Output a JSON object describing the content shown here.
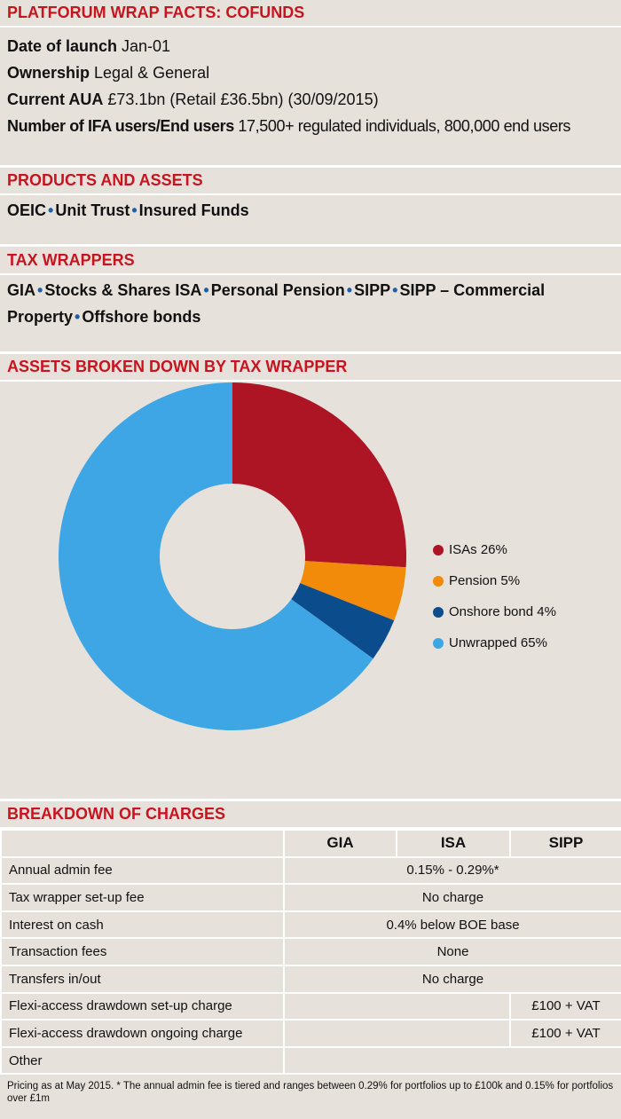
{
  "header": {
    "title": "PLATFORUM WRAP FACTS: COFUNDS"
  },
  "facts": [
    {
      "label": "Date of launch",
      "value": "Jan-01"
    },
    {
      "label": "Ownership",
      "value": "Legal & General"
    },
    {
      "label": "Current AUA",
      "value": "£73.1bn (Retail £36.5bn) (30/09/2015)"
    },
    {
      "label": "Number of IFA users/End users",
      "value": "17,500+ regulated individuals, 800,000 end users"
    }
  ],
  "products": {
    "title": "PRODUCTS AND ASSETS",
    "items": [
      "OEIC",
      "Unit Trust",
      "Insured Funds"
    ]
  },
  "tax_wrappers": {
    "title": "TAX WRAPPERS",
    "items": [
      "GIA",
      "Stocks & Shares ISA",
      "Personal Pension",
      "SIPP",
      "SIPP – Commercial Property",
      "Offshore bonds"
    ]
  },
  "chart_data": {
    "type": "pie",
    "title": "ASSETS BROKEN DOWN BY TAX WRAPPER",
    "slices": [
      {
        "label": "ISAs 26%",
        "value": 26,
        "color": "#ad1424"
      },
      {
        "label": "Pension 5%",
        "value": 5,
        "color": "#f28a0a"
      },
      {
        "label": "Onshore bond 4%",
        "value": 4,
        "color": "#0b4d8c"
      },
      {
        "label": "Unwrapped 65%",
        "value": 65,
        "color": "#3ea6e4"
      }
    ],
    "donut": true,
    "legend": "right"
  },
  "charges": {
    "title": "BREAKDOWN OF CHARGES",
    "columns": [
      "GIA",
      "ISA",
      "SIPP"
    ],
    "rows": [
      {
        "label": "Annual admin fee",
        "all": "0.15% - 0.29%*"
      },
      {
        "label": "Tax wrapper set-up fee",
        "all": "No charge"
      },
      {
        "label": "Interest on cash",
        "all": "0.4% below BOE base"
      },
      {
        "label": "Transaction fees",
        "all": "None"
      },
      {
        "label": "Transfers in/out",
        "all": "No charge"
      },
      {
        "label": "Flexi-access drawdown set-up charge",
        "gia_isa": "",
        "sipp": "£100 + VAT"
      },
      {
        "label": "Flexi-access drawdown ongoing charge",
        "gia_isa": "",
        "sipp": "£100 + VAT"
      },
      {
        "label": "Other",
        "all": ""
      }
    ]
  },
  "footnote": "Pricing as at May 2015.  * The annual admin fee is tiered and ranges between 0.29% for portfolios up to £100k and 0.15% for portfolios over £1m"
}
